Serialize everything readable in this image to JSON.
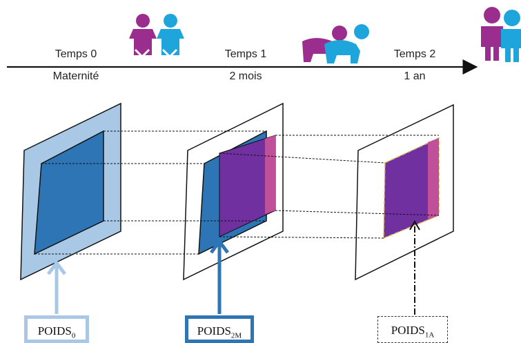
{
  "timeline": {
    "points": [
      {
        "label": "Temps 0",
        "sublabel": "Maternité",
        "icon": "babies-icon"
      },
      {
        "label": "Temps 1",
        "sublabel": "2 mois",
        "icon": "crawling-babies-icon"
      },
      {
        "label": "Temps 2",
        "sublabel": "1 an",
        "icon": "children-icon"
      }
    ]
  },
  "weights": [
    {
      "label": "POIDS",
      "subscript": "0",
      "border": "solid light blue"
    },
    {
      "label": "POIDS",
      "subscript": "2M",
      "border": "solid dark blue"
    },
    {
      "label": "POIDS",
      "subscript": "1A",
      "border": "dashed"
    }
  ],
  "colors": {
    "light_blue": "#a9c8e6",
    "mid_blue": "#2e75b6",
    "purple": "#7030a0",
    "magenta": "#c0509a",
    "cyan": "#1ea5dc"
  }
}
